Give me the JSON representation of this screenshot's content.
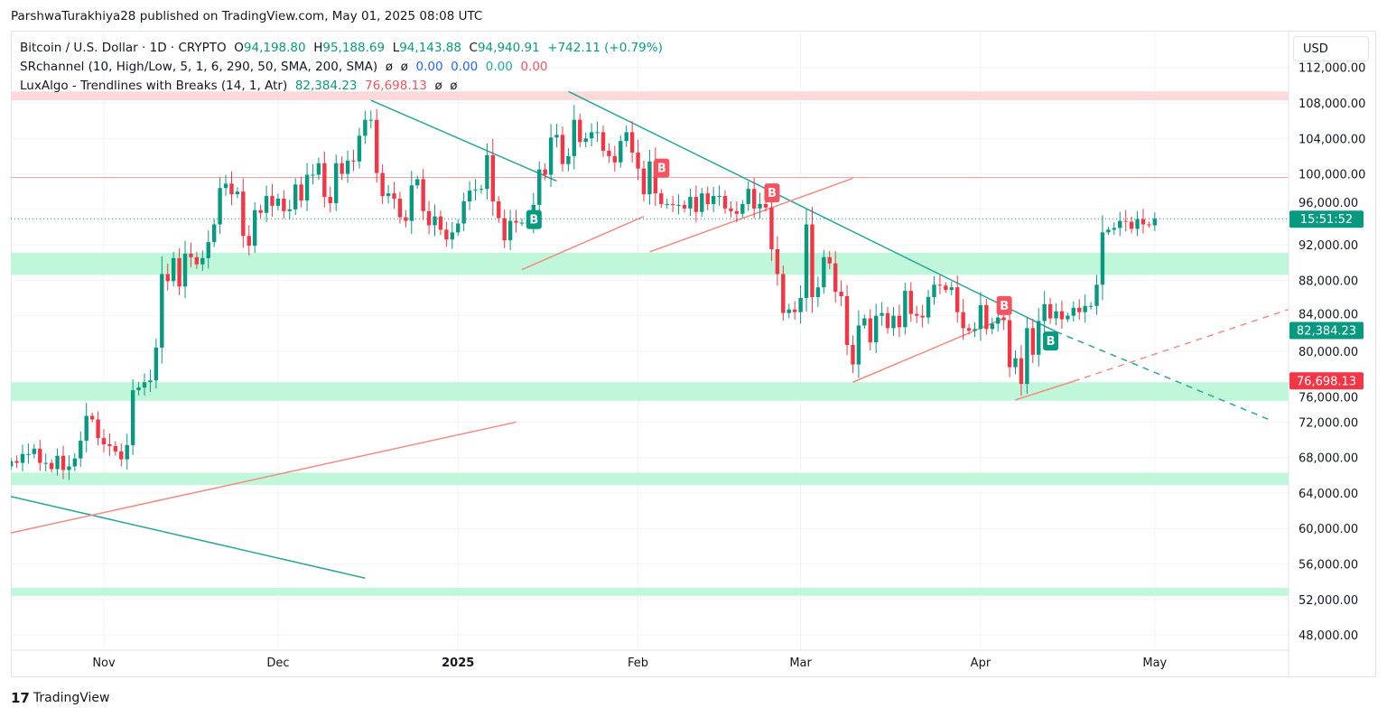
{
  "header": {
    "published": "ParshwaTurakhiya28 published on TradingView.com, May 01, 2025 08:08 UTC"
  },
  "legend": {
    "symbol": "Bitcoin / U.S. Dollar · 1D · CRYPTO",
    "o_label": "O",
    "o": "94,198.80",
    "h_label": "H",
    "h": "95,188.69",
    "l_label": "L",
    "l": "94,143.88",
    "c_label": "C",
    "c": "94,940.91",
    "change": "+742.11 (+0.79%)",
    "sr_name": "SRchannel (10, High/Low, 5, 1, 6, 290, 50, SMA, 200, SMA)",
    "sr_vals": [
      "ø",
      "ø",
      "0.00",
      "0.00",
      "0.00",
      "0.00"
    ],
    "lux_name": "LuxAlgo - Trendlines with Breaks (14, 1, Atr)",
    "lux_vals": [
      "82,384.23",
      "76,698.13",
      "ø",
      "ø"
    ]
  },
  "currency_button": "USD",
  "branding": {
    "logo_text": "TradingView"
  },
  "colors": {
    "up": "#089981",
    "down": "#f23645",
    "support_zone": "#b9f6d6",
    "resistance_zone": "#fdd5d7",
    "trend_down": "#26a69a",
    "trend_up": "#f28b82"
  },
  "chart_data": {
    "type": "candlestick",
    "title": "Bitcoin / U.S. Dollar · 1D · CRYPTO",
    "start_date": "2024-10-16",
    "closes": [
      67600,
      67400,
      68400,
      68400,
      69000,
      67400,
      67400,
      66700,
      68200,
      66600,
      67000,
      67900,
      69900,
      72700,
      72300,
      70200,
      69500,
      69300,
      68700,
      67800,
      69400,
      75600,
      75900,
      76500,
      76700,
      80400,
      88700,
      87900,
      90500,
      87300,
      91000,
      90600,
      89800,
      90500,
      92300,
      94300,
      98400,
      98900,
      97700,
      98000,
      93000,
      91900,
      95900,
      95600,
      97500,
      96400,
      97200,
      95800,
      96000,
      98800,
      97000,
      99900,
      99900,
      101200,
      97400,
      96700,
      101200,
      100000,
      101500,
      101400,
      104300,
      106100,
      106100,
      100100,
      97500,
      97800,
      97200,
      95100,
      94700,
      98700,
      99400,
      95800,
      94200,
      95200,
      93700,
      92600,
      93400,
      94400,
      96900,
      98100,
      98200,
      98300,
      102100,
      96900,
      95000,
      92500,
      94700,
      94500,
      94500,
      94500,
      96500,
      100500,
      99900,
      104100,
      104400,
      101100,
      102000,
      106100,
      103600,
      104000,
      104700,
      104700,
      102600,
      102000,
      101300,
      103700,
      104700,
      102400,
      100600,
      97700,
      101400,
      97800,
      96600,
      96600,
      96500,
      96500,
      96100,
      97400,
      95700,
      97800,
      96600,
      97500,
      97500,
      96100,
      95800,
      95500,
      96600,
      98300,
      96100,
      96600,
      96200,
      91500,
      88700,
      84300,
      84700,
      84400,
      86000,
      94300,
      86100,
      87200,
      90600,
      89900,
      86700,
      86200,
      80700,
      78500,
      82900,
      83700,
      81000,
      84000,
      84300,
      82600,
      84000,
      82700,
      86800,
      84200,
      84000,
      83800,
      86100,
      87500,
      87400,
      86900,
      87200,
      84400,
      82600,
      82300,
      82500,
      85200,
      82500,
      83100,
      83800,
      83500,
      78200,
      79200,
      76300,
      82600,
      79600,
      83400,
      85300,
      83700,
      84500,
      83600,
      84000,
      84900,
      84400,
      85100,
      85100,
      87500,
      93400,
      93700,
      93900,
      94700,
      94600,
      93800,
      94900,
      94300,
      94200,
      94940.91
    ],
    "first_open": 67000,
    "y_ticks": [
      112000,
      108000,
      104000,
      100000,
      96000,
      92000,
      88000,
      84000,
      80000,
      76000,
      72000,
      68000,
      64000,
      60000,
      56000,
      52000,
      48000
    ],
    "y_tick_labels": [
      "112,000.00",
      "108,000.00",
      "104,000.00",
      "100,000.00",
      "96,000.00",
      "92,000.00",
      "88,000.00",
      "84,000.00",
      "80,000.00",
      "76,000.00",
      "72,000.00",
      "68,000.00",
      "64,000.00",
      "60,000.00",
      "56,000.00",
      "52,000.00",
      "48,000.00"
    ],
    "x_ticks": [
      {
        "date": "2024-11-01",
        "label": "Nov"
      },
      {
        "date": "2024-12-01",
        "label": "Dec"
      },
      {
        "date": "2025-01-01",
        "label": "2025",
        "bold": true
      },
      {
        "date": "2025-02-01",
        "label": "Feb"
      },
      {
        "date": "2025-03-01",
        "label": "Mar"
      },
      {
        "date": "2025-04-01",
        "label": "Apr"
      },
      {
        "date": "2025-05-01",
        "label": "May"
      }
    ],
    "zones": [
      {
        "kind": "resistance",
        "from": 108300,
        "to": 109300
      },
      {
        "kind": "support",
        "from": 88600,
        "to": 91100
      },
      {
        "kind": "support",
        "from": 74400,
        "to": 76500
      },
      {
        "kind": "support",
        "from": 64900,
        "to": 66300
      },
      {
        "kind": "support",
        "from": 52400,
        "to": 53300
      }
    ],
    "resistance_line": 99600,
    "last_price": 94940.91,
    "trendlines": [
      {
        "color": "down",
        "p1": [
          "2024-12-17",
          108300
        ],
        "p2": [
          "2025-01-18",
          99200
        ]
      },
      {
        "color": "down",
        "p1": [
          "2025-01-20",
          109300
        ],
        "p2": [
          "2025-04-14",
          82200
        ]
      },
      {
        "color": "down",
        "dashed": true,
        "p1": [
          "2025-04-14",
          82200
        ],
        "p2": [
          "2025-05-21",
          72200
        ]
      },
      {
        "color": "up",
        "p1": [
          "2025-01-12",
          89200
        ],
        "p2": [
          "2025-02-02",
          95200
        ]
      },
      {
        "color": "up",
        "p1": [
          "2025-02-03",
          91200
        ],
        "p2": [
          "2025-03-10",
          99500
        ]
      },
      {
        "color": "up",
        "p1": [
          "2025-03-10",
          76500
        ],
        "p2": [
          "2025-04-05",
          83700
        ]
      },
      {
        "color": "up",
        "p1": [
          "2025-04-07",
          74500
        ],
        "p2": [
          "2025-04-17",
          76600
        ]
      },
      {
        "color": "up",
        "dashed": true,
        "p1": [
          "2025-04-17",
          76600
        ],
        "p2": [
          "2025-05-24",
          84700
        ]
      },
      {
        "color": "down",
        "p1": [
          "2024-10-16",
          63600
        ],
        "p2": [
          "2024-12-16",
          54400
        ]
      },
      {
        "color": "up",
        "p1": [
          "2024-10-16",
          59500
        ],
        "p2": [
          "2025-01-11",
          72000
        ]
      }
    ],
    "markers": [
      {
        "date": "2025-01-14",
        "price": 94900,
        "label": "B",
        "kind": "bull"
      },
      {
        "date": "2025-02-05",
        "price": 100700,
        "label": "B",
        "kind": "bear"
      },
      {
        "date": "2025-02-24",
        "price": 97900,
        "label": "B",
        "kind": "bear"
      },
      {
        "date": "2025-04-05",
        "price": 85200,
        "label": "B",
        "kind": "bear"
      },
      {
        "date": "2025-04-13",
        "price": 81200,
        "label": "B",
        "kind": "bull"
      }
    ],
    "price_labels": [
      {
        "price": 94940.91,
        "text": "15:51:52",
        "kind": "up"
      },
      {
        "price": 82384.23,
        "text": "82,384.23",
        "kind": "up"
      },
      {
        "price": 76698.13,
        "text": "76,698.13",
        "kind": "down"
      }
    ]
  }
}
